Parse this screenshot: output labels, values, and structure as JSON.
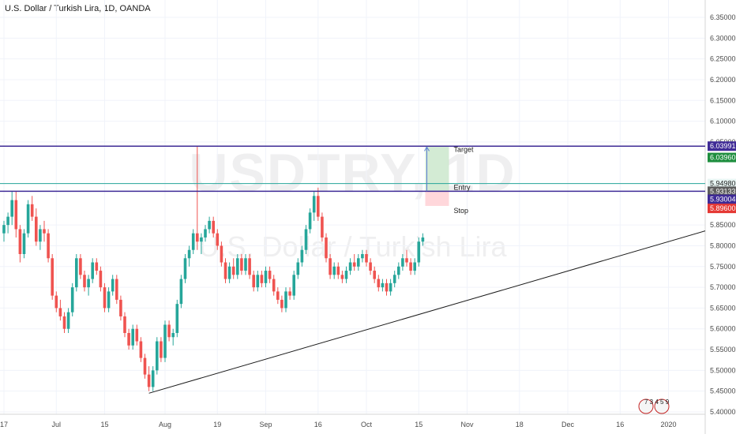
{
  "header": {
    "title": "U.S. Dollar / Turkish Lira, 1D, OANDA"
  },
  "watermark": {
    "ticker": "USDTRY, 1D",
    "description": "U.S. Dollar / Turkish Lira"
  },
  "chart_data": {
    "type": "candlestick",
    "symbol": "USDTRY",
    "timeframe": "1D",
    "source": "OANDA",
    "ylim": [
      5.4,
      6.37
    ],
    "grid": true,
    "y_ticks": [
      "6.35000",
      "6.30000",
      "6.25000",
      "6.20000",
      "6.15000",
      "6.10000",
      "6.05000",
      "5.95000",
      "5.85000",
      "5.80000",
      "5.75000",
      "5.70000",
      "5.65000",
      "5.60000",
      "5.55000",
      "5.50000",
      "5.45000",
      "5.40000"
    ],
    "y_tick_values": [
      6.35,
      6.3,
      6.25,
      6.2,
      6.15,
      6.1,
      6.05,
      5.95,
      5.85,
      5.8,
      5.75,
      5.7,
      5.65,
      5.6,
      5.55,
      5.5,
      5.45,
      5.4
    ],
    "x_labels": [
      "17",
      "Jul",
      "15",
      "Aug",
      "19",
      "Sep",
      "16",
      "Oct",
      "15",
      "Nov",
      "18",
      "Dec",
      "16",
      "2020"
    ],
    "x_label_index": [
      0,
      13,
      25,
      40,
      53,
      65,
      78,
      90,
      103,
      115,
      128,
      140,
      153,
      165
    ],
    "candles": [
      {
        "o": 5.83,
        "h": 5.86,
        "l": 5.81,
        "c": 5.85
      },
      {
        "o": 5.85,
        "h": 5.88,
        "l": 5.83,
        "c": 5.87
      },
      {
        "o": 5.87,
        "h": 5.93,
        "l": 5.85,
        "c": 5.91
      },
      {
        "o": 5.91,
        "h": 5.93,
        "l": 5.82,
        "c": 5.84
      },
      {
        "o": 5.84,
        "h": 5.85,
        "l": 5.76,
        "c": 5.78
      },
      {
        "o": 5.78,
        "h": 5.84,
        "l": 5.77,
        "c": 5.83
      },
      {
        "o": 5.83,
        "h": 5.91,
        "l": 5.82,
        "c": 5.9
      },
      {
        "o": 5.9,
        "h": 5.92,
        "l": 5.86,
        "c": 5.87
      },
      {
        "o": 5.87,
        "h": 5.89,
        "l": 5.8,
        "c": 5.81
      },
      {
        "o": 5.81,
        "h": 5.85,
        "l": 5.79,
        "c": 5.84
      },
      {
        "o": 5.84,
        "h": 5.86,
        "l": 5.81,
        "c": 5.83
      },
      {
        "o": 5.83,
        "h": 5.84,
        "l": 5.76,
        "c": 5.77
      },
      {
        "o": 5.77,
        "h": 5.78,
        "l": 5.67,
        "c": 5.68
      },
      {
        "o": 5.68,
        "h": 5.69,
        "l": 5.64,
        "c": 5.65
      },
      {
        "o": 5.65,
        "h": 5.67,
        "l": 5.62,
        "c": 5.63
      },
      {
        "o": 5.63,
        "h": 5.64,
        "l": 5.59,
        "c": 5.6
      },
      {
        "o": 5.6,
        "h": 5.65,
        "l": 5.59,
        "c": 5.64
      },
      {
        "o": 5.64,
        "h": 5.71,
        "l": 5.63,
        "c": 5.7
      },
      {
        "o": 5.7,
        "h": 5.78,
        "l": 5.69,
        "c": 5.77
      },
      {
        "o": 5.77,
        "h": 5.78,
        "l": 5.72,
        "c": 5.73
      },
      {
        "o": 5.73,
        "h": 5.74,
        "l": 5.69,
        "c": 5.7
      },
      {
        "o": 5.7,
        "h": 5.73,
        "l": 5.68,
        "c": 5.72
      },
      {
        "o": 5.72,
        "h": 5.77,
        "l": 5.71,
        "c": 5.76
      },
      {
        "o": 5.76,
        "h": 5.77,
        "l": 5.73,
        "c": 5.74
      },
      {
        "o": 5.74,
        "h": 5.75,
        "l": 5.69,
        "c": 5.7
      },
      {
        "o": 5.7,
        "h": 5.71,
        "l": 5.64,
        "c": 5.65
      },
      {
        "o": 5.65,
        "h": 5.7,
        "l": 5.64,
        "c": 5.69
      },
      {
        "o": 5.69,
        "h": 5.73,
        "l": 5.68,
        "c": 5.72
      },
      {
        "o": 5.72,
        "h": 5.73,
        "l": 5.66,
        "c": 5.67
      },
      {
        "o": 5.67,
        "h": 5.68,
        "l": 5.62,
        "c": 5.63
      },
      {
        "o": 5.63,
        "h": 5.64,
        "l": 5.58,
        "c": 5.59
      },
      {
        "o": 5.59,
        "h": 5.6,
        "l": 5.55,
        "c": 5.56
      },
      {
        "o": 5.56,
        "h": 5.61,
        "l": 5.55,
        "c": 5.6
      },
      {
        "o": 5.6,
        "h": 5.61,
        "l": 5.56,
        "c": 5.57
      },
      {
        "o": 5.57,
        "h": 5.58,
        "l": 5.52,
        "c": 5.53
      },
      {
        "o": 5.53,
        "h": 5.54,
        "l": 5.48,
        "c": 5.49
      },
      {
        "o": 5.49,
        "h": 5.51,
        "l": 5.45,
        "c": 5.46
      },
      {
        "o": 5.46,
        "h": 5.51,
        "l": 5.45,
        "c": 5.5
      },
      {
        "o": 5.5,
        "h": 5.58,
        "l": 5.49,
        "c": 5.57
      },
      {
        "o": 5.57,
        "h": 5.58,
        "l": 5.52,
        "c": 5.53
      },
      {
        "o": 5.53,
        "h": 5.62,
        "l": 5.52,
        "c": 5.61
      },
      {
        "o": 5.61,
        "h": 5.62,
        "l": 5.57,
        "c": 5.58
      },
      {
        "o": 5.58,
        "h": 5.6,
        "l": 5.56,
        "c": 5.59
      },
      {
        "o": 5.59,
        "h": 5.67,
        "l": 5.58,
        "c": 5.66
      },
      {
        "o": 5.66,
        "h": 5.73,
        "l": 5.65,
        "c": 5.72
      },
      {
        "o": 5.72,
        "h": 5.78,
        "l": 5.71,
        "c": 5.77
      },
      {
        "o": 5.77,
        "h": 5.8,
        "l": 5.75,
        "c": 5.79
      },
      {
        "o": 5.79,
        "h": 5.84,
        "l": 5.78,
        "c": 5.83
      },
      {
        "o": 5.83,
        "h": 6.04,
        "l": 5.79,
        "c": 5.81
      },
      {
        "o": 5.81,
        "h": 5.83,
        "l": 5.78,
        "c": 5.82
      },
      {
        "o": 5.82,
        "h": 5.85,
        "l": 5.81,
        "c": 5.84
      },
      {
        "o": 5.84,
        "h": 5.87,
        "l": 5.83,
        "c": 5.86
      },
      {
        "o": 5.86,
        "h": 5.87,
        "l": 5.82,
        "c": 5.83
      },
      {
        "o": 5.83,
        "h": 5.84,
        "l": 5.79,
        "c": 5.8
      },
      {
        "o": 5.8,
        "h": 5.81,
        "l": 5.75,
        "c": 5.76
      },
      {
        "o": 5.76,
        "h": 5.77,
        "l": 5.71,
        "c": 5.72
      },
      {
        "o": 5.72,
        "h": 5.76,
        "l": 5.71,
        "c": 5.75
      },
      {
        "o": 5.75,
        "h": 5.77,
        "l": 5.72,
        "c": 5.73
      },
      {
        "o": 5.73,
        "h": 5.78,
        "l": 5.72,
        "c": 5.77
      },
      {
        "o": 5.77,
        "h": 5.78,
        "l": 5.73,
        "c": 5.74
      },
      {
        "o": 5.74,
        "h": 5.78,
        "l": 5.73,
        "c": 5.77
      },
      {
        "o": 5.77,
        "h": 5.78,
        "l": 5.72,
        "c": 5.73
      },
      {
        "o": 5.73,
        "h": 5.74,
        "l": 5.69,
        "c": 5.7
      },
      {
        "o": 5.7,
        "h": 5.74,
        "l": 5.69,
        "c": 5.73
      },
      {
        "o": 5.73,
        "h": 5.74,
        "l": 5.7,
        "c": 5.71
      },
      {
        "o": 5.71,
        "h": 5.75,
        "l": 5.7,
        "c": 5.74
      },
      {
        "o": 5.74,
        "h": 5.75,
        "l": 5.71,
        "c": 5.72
      },
      {
        "o": 5.72,
        "h": 5.73,
        "l": 5.68,
        "c": 5.69
      },
      {
        "o": 5.69,
        "h": 5.7,
        "l": 5.66,
        "c": 5.67
      },
      {
        "o": 5.67,
        "h": 5.68,
        "l": 5.64,
        "c": 5.65
      },
      {
        "o": 5.65,
        "h": 5.7,
        "l": 5.64,
        "c": 5.69
      },
      {
        "o": 5.69,
        "h": 5.7,
        "l": 5.67,
        "c": 5.68
      },
      {
        "o": 5.68,
        "h": 5.74,
        "l": 5.67,
        "c": 5.73
      },
      {
        "o": 5.73,
        "h": 5.77,
        "l": 5.72,
        "c": 5.76
      },
      {
        "o": 5.76,
        "h": 5.8,
        "l": 5.75,
        "c": 5.79
      },
      {
        "o": 5.79,
        "h": 5.85,
        "l": 5.78,
        "c": 5.84
      },
      {
        "o": 5.84,
        "h": 5.89,
        "l": 5.83,
        "c": 5.88
      },
      {
        "o": 5.88,
        "h": 5.93,
        "l": 5.86,
        "c": 5.92
      },
      {
        "o": 5.92,
        "h": 5.94,
        "l": 5.86,
        "c": 5.87
      },
      {
        "o": 5.87,
        "h": 5.88,
        "l": 5.81,
        "c": 5.82
      },
      {
        "o": 5.82,
        "h": 5.83,
        "l": 5.76,
        "c": 5.77
      },
      {
        "o": 5.77,
        "h": 5.78,
        "l": 5.72,
        "c": 5.73
      },
      {
        "o": 5.73,
        "h": 5.76,
        "l": 5.72,
        "c": 5.75
      },
      {
        "o": 5.75,
        "h": 5.76,
        "l": 5.72,
        "c": 5.73
      },
      {
        "o": 5.73,
        "h": 5.74,
        "l": 5.71,
        "c": 5.72
      },
      {
        "o": 5.72,
        "h": 5.75,
        "l": 5.71,
        "c": 5.74
      },
      {
        "o": 5.74,
        "h": 5.77,
        "l": 5.73,
        "c": 5.76
      },
      {
        "o": 5.76,
        "h": 5.78,
        "l": 5.74,
        "c": 5.75
      },
      {
        "o": 5.75,
        "h": 5.78,
        "l": 5.74,
        "c": 5.77
      },
      {
        "o": 5.77,
        "h": 5.79,
        "l": 5.76,
        "c": 5.78
      },
      {
        "o": 5.78,
        "h": 5.79,
        "l": 5.75,
        "c": 5.76
      },
      {
        "o": 5.76,
        "h": 5.77,
        "l": 5.73,
        "c": 5.74
      },
      {
        "o": 5.74,
        "h": 5.75,
        "l": 5.71,
        "c": 5.72
      },
      {
        "o": 5.72,
        "h": 5.73,
        "l": 5.69,
        "c": 5.7
      },
      {
        "o": 5.7,
        "h": 5.72,
        "l": 5.69,
        "c": 5.71
      },
      {
        "o": 5.71,
        "h": 5.72,
        "l": 5.68,
        "c": 5.69
      },
      {
        "o": 5.69,
        "h": 5.72,
        "l": 5.68,
        "c": 5.71
      },
      {
        "o": 5.71,
        "h": 5.74,
        "l": 5.7,
        "c": 5.73
      },
      {
        "o": 5.73,
        "h": 5.76,
        "l": 5.72,
        "c": 5.75
      },
      {
        "o": 5.75,
        "h": 5.78,
        "l": 5.74,
        "c": 5.77
      },
      {
        "o": 5.77,
        "h": 5.79,
        "l": 5.75,
        "c": 5.76
      },
      {
        "o": 5.76,
        "h": 5.77,
        "l": 5.73,
        "c": 5.74
      },
      {
        "o": 5.74,
        "h": 5.77,
        "l": 5.73,
        "c": 5.76
      },
      {
        "o": 5.76,
        "h": 5.82,
        "l": 5.75,
        "c": 5.81
      },
      {
        "o": 5.81,
        "h": 5.83,
        "l": 5.8,
        "c": 5.82
      }
    ],
    "trendline": {
      "from": {
        "index": 36,
        "price": 5.445
      },
      "to": {
        "index": 171,
        "price": 5.827
      }
    },
    "levels": [
      {
        "name": "Target",
        "price": 6.03991,
        "label": "6.03991",
        "color": "#3f2b96"
      },
      {
        "name": "Entry",
        "price": 5.93133,
        "label": "5.93133",
        "color": "#3f2b96"
      },
      {
        "name": "Current",
        "price": 5.9498,
        "label": "5.94980",
        "color": "#26a69a"
      }
    ],
    "position": {
      "target_label": "Target",
      "entry_label": "Entry",
      "stop_label": "Stop",
      "target_price": 6.0396,
      "target_tag": "6.03960",
      "stop_price": 5.896,
      "stop_tag": "5.89600",
      "entry_tag": "5.93004"
    }
  },
  "colors": {
    "up": "#26a69a",
    "down": "#ef5350",
    "level_line": "#3f2b96",
    "current_line": "#26a69a",
    "grid": "#f0f3fa",
    "axis_text": "#4a4a4a",
    "profit_zone": "#c8e6c9",
    "loss_zone": "#ffcdd2"
  },
  "footer": {
    "badge_text": "7 3 4 5 9"
  }
}
